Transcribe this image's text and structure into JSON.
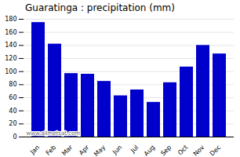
{
  "chart_data": {
    "type": "bar",
    "title": "Guaratinga : precipitation (mm)",
    "categories": [
      "Jan",
      "Feb",
      "Mar",
      "Apr",
      "May",
      "Jun",
      "Jul",
      "Aug",
      "Sep",
      "Oct",
      "Nov",
      "Dec"
    ],
    "values": [
      175,
      142,
      97,
      96,
      85,
      63,
      72,
      53,
      83,
      107,
      140,
      127
    ],
    "color": "#0000cc",
    "ylim": [
      0,
      180
    ],
    "yticks": [
      0,
      20,
      40,
      60,
      80,
      100,
      120,
      140,
      160,
      180
    ],
    "grid": true,
    "annotations": [
      "www.allmetsat.com"
    ]
  }
}
